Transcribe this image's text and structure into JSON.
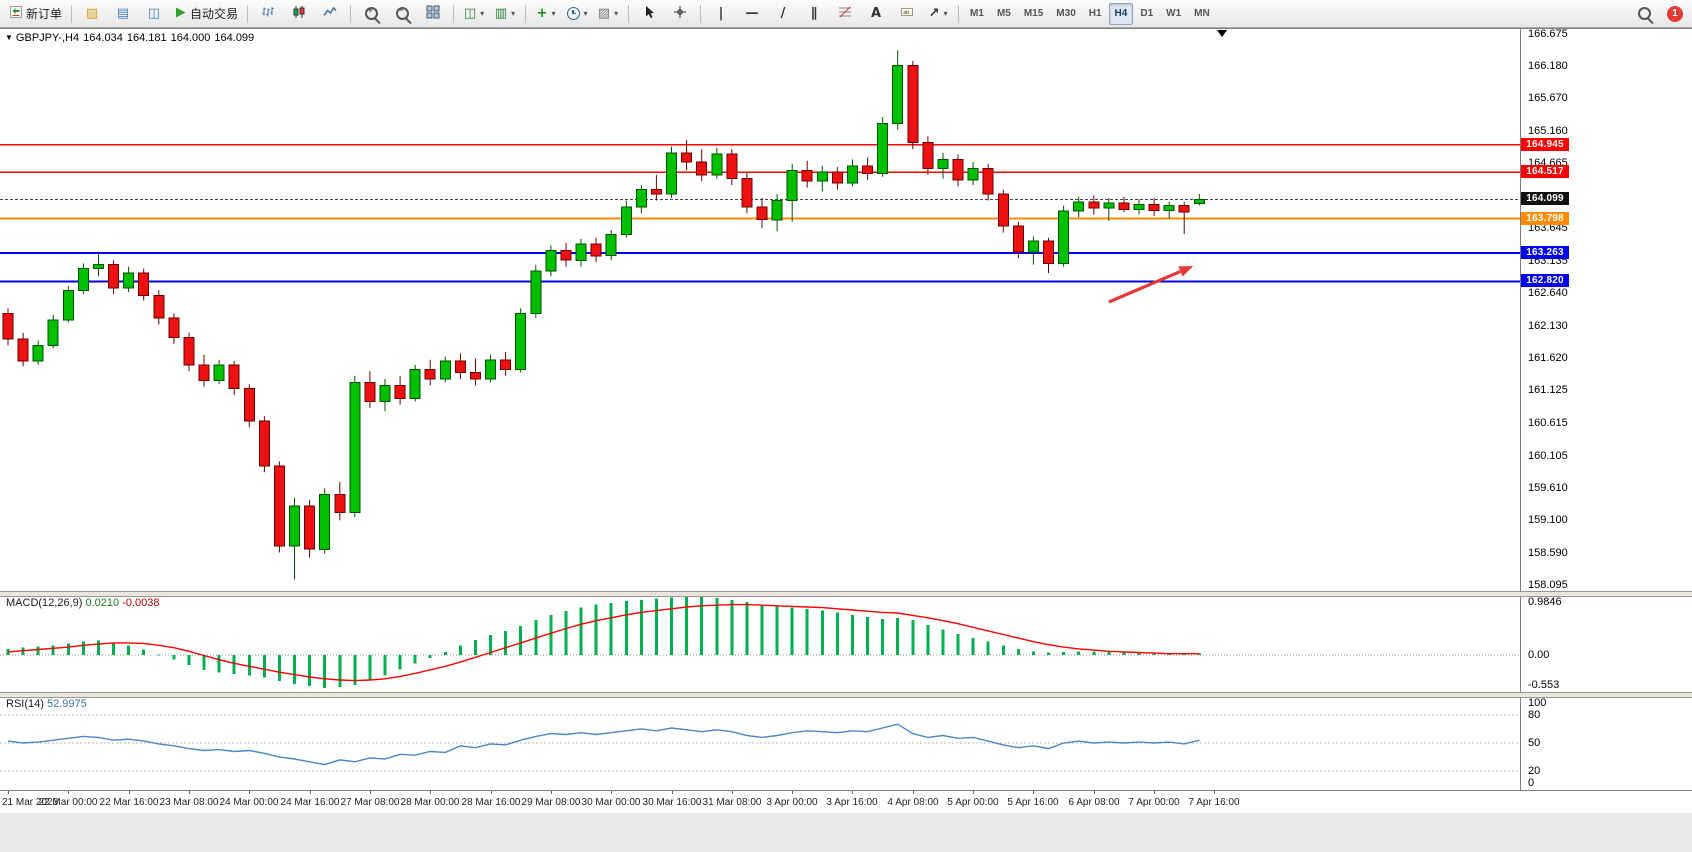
{
  "toolbar": {
    "new_order_label": "新订单",
    "autotrading_label": "自动交易",
    "notification_badge": "1",
    "items": [
      {
        "type": "button",
        "name": "new-order-button",
        "icon": "neworder",
        "label": "新订单"
      },
      {
        "type": "sep"
      },
      {
        "type": "button",
        "name": "new-chart-button",
        "icon": "glyph",
        "glyph": "▧",
        "color": "#d4a017"
      },
      {
        "type": "button",
        "name": "profiles-button",
        "icon": "glyph",
        "glyph": "▤",
        "color": "#4a7ebb"
      },
      {
        "type": "button",
        "name": "terminal-button",
        "icon": "glyph",
        "glyph": "◫",
        "color": "#4a7ebb"
      },
      {
        "type": "button",
        "name": "autotrading-button",
        "icon": "play",
        "label": "自动交易"
      },
      {
        "type": "sep"
      },
      {
        "type": "button",
        "name": "bar-chart-button",
        "icon": "bars"
      },
      {
        "type": "button",
        "name": "candlestick-chart-button",
        "icon": "candles"
      },
      {
        "type": "button",
        "name": "line-chart-button",
        "icon": "linechart"
      },
      {
        "type": "sep"
      },
      {
        "type": "button",
        "name": "zoom-in-button",
        "icon": "magplus"
      },
      {
        "type": "button",
        "name": "zoom-out-button",
        "icon": "magminus"
      },
      {
        "type": "button",
        "name": "tile-windows-button",
        "icon": "tile"
      },
      {
        "type": "sep"
      },
      {
        "type": "button",
        "name": "chart-list-button",
        "icon": "glyph",
        "glyph": "◫",
        "color": "#2e7d32",
        "caret": true
      },
      {
        "type": "button",
        "name": "profiles-menu-button",
        "icon": "glyph",
        "glyph": "▥",
        "color": "#2e7d32",
        "caret": true
      },
      {
        "type": "sep"
      },
      {
        "type": "button",
        "name": "indicators-button",
        "icon": "glyph",
        "glyph": "+",
        "color": "#0a8f08",
        "caret": true
      },
      {
        "type": "button",
        "name": "periods-button",
        "icon": "clock",
        "caret": true
      },
      {
        "type": "button",
        "name": "templates-button",
        "icon": "glyph",
        "glyph": "▨",
        "color": "#777777",
        "caret": true
      },
      {
        "type": "sep"
      },
      {
        "type": "button",
        "name": "cursor-button",
        "icon": "cursor"
      },
      {
        "type": "button",
        "name": "crosshair-button",
        "icon": "crosshair"
      },
      {
        "type": "sep"
      },
      {
        "type": "button",
        "name": "vertical-line-button",
        "icon": "glyph",
        "glyph": "|",
        "color": "#333333"
      },
      {
        "type": "button",
        "name": "horizontal-line-button",
        "icon": "glyph",
        "glyph": "—",
        "color": "#333333"
      },
      {
        "type": "button",
        "name": "trendline-button",
        "icon": "glyph",
        "glyph": "/",
        "color": "#333333"
      },
      {
        "type": "button",
        "name": "channel-button",
        "icon": "glyph",
        "glyph": "∥",
        "color": "#333333"
      },
      {
        "type": "button",
        "name": "fibonacci-button",
        "icon": "fib"
      },
      {
        "type": "button",
        "name": "text-button",
        "icon": "glyph",
        "glyph": "A",
        "color": "#333333"
      },
      {
        "type": "button",
        "name": "text-label-button",
        "icon": "labelicon"
      },
      {
        "type": "button",
        "name": "arrows-button",
        "icon": "glyph",
        "glyph": "↗",
        "color": "#333333",
        "caret": true
      },
      {
        "type": "sep"
      },
      {
        "type": "timeframes"
      }
    ],
    "timeframes": {
      "items": [
        "M1",
        "M5",
        "M15",
        "M30",
        "H1",
        "H4",
        "D1",
        "W1",
        "MN"
      ],
      "active": "H4"
    },
    "right_items": [
      {
        "type": "button",
        "name": "search-button",
        "icon": "mag"
      },
      {
        "type": "badge",
        "name": "notification-badge"
      }
    ]
  },
  "chart": {
    "title": {
      "collapse_icon": "▼",
      "symbol": "GBPJPY-,H4",
      "open": "164.034",
      "high": "164.181",
      "low": "164.000",
      "close": "164.099"
    },
    "price_axis_labels": [
      "166.675",
      "166.180",
      "165.670",
      "165.160",
      "164.665",
      "163.645",
      "163.135",
      "162.640",
      "162.130",
      "161.620",
      "161.125",
      "160.615",
      "160.105",
      "159.610",
      "159.100",
      "158.590",
      "158.095"
    ],
    "macd_pane": {
      "label": "MACD(12,26,9)",
      "value_main": "0.0210",
      "value_signal": "-0.0038",
      "axis_labels": [
        "0.9846",
        "0.00",
        "-0.553"
      ]
    },
    "rsi_pane": {
      "label": "RSI(14)",
      "value": "52.9975",
      "axis_labels": [
        "100",
        "80",
        "50",
        "20",
        "0"
      ]
    },
    "time_axis_labels": [
      "21 Mar 2023",
      "22 Mar 00:00",
      "22 Mar 16:00",
      "23 Mar 08:00",
      "24 Mar 00:00",
      "24 Mar 16:00",
      "27 Mar 08:00",
      "28 Mar 00:00",
      "28 Mar 16:00",
      "29 Mar 08:00",
      "30 Mar 00:00",
      "30 Mar 16:00",
      "31 Mar 08:00",
      "3 Apr 00:00",
      "3 Apr 16:00",
      "4 Apr 08:00",
      "5 Apr 00:00",
      "5 Apr 16:00",
      "6 Apr 08:00",
      "7 Apr 00:00",
      "7 Apr 16:00"
    ]
  },
  "chart_data": {
    "type": "candlestick",
    "symbol": "GBPJPY",
    "timeframe": "H4",
    "ohlc_current": {
      "open": 164.034,
      "high": 164.181,
      "low": 164.0,
      "close": 164.099
    },
    "price_range": [
      158.0,
      166.75
    ],
    "colors": {
      "up": "#00C000",
      "up_border": "#005200",
      "down": "#EE1111",
      "down_border": "#6A0000",
      "macd_hist": "#00B050",
      "macd_signal": "#FF0000",
      "rsi_line": "#4A86C8",
      "arrow": "#E53935"
    },
    "hlines": [
      {
        "price": 164.945,
        "label": "164.945",
        "color": "#FF0000",
        "width": 1.4
      },
      {
        "price": 164.517,
        "label": "164.517",
        "color": "#FF0000",
        "width": 1.4
      },
      {
        "price": 163.798,
        "label": "163.798",
        "color": "#FF8C00",
        "width": 2
      },
      {
        "price": 163.263,
        "label": "163.263",
        "color": "#0000EE",
        "width": 2
      },
      {
        "price": 162.82,
        "label": "162.820",
        "color": "#0000EE",
        "width": 2
      }
    ],
    "bid": {
      "price": 164.099,
      "label": "164.099",
      "color": "#111111"
    },
    "candles": [
      [
        162.32,
        162.4,
        161.82,
        161.92
      ],
      [
        161.92,
        162.02,
        161.5,
        161.58
      ],
      [
        161.58,
        161.9,
        161.52,
        161.82
      ],
      [
        161.82,
        162.3,
        161.78,
        162.22
      ],
      [
        162.22,
        162.75,
        162.18,
        162.68
      ],
      [
        162.68,
        163.1,
        162.62,
        163.02
      ],
      [
        163.02,
        163.26,
        162.9,
        163.08
      ],
      [
        163.08,
        163.15,
        162.62,
        162.72
      ],
      [
        162.72,
        163.05,
        162.65,
        162.95
      ],
      [
        162.95,
        163.02,
        162.52,
        162.6
      ],
      [
        162.6,
        162.68,
        162.15,
        162.25
      ],
      [
        162.25,
        162.32,
        161.85,
        161.95
      ],
      [
        161.95,
        162.02,
        161.42,
        161.52
      ],
      [
        161.52,
        161.68,
        161.18,
        161.28
      ],
      [
        161.28,
        161.6,
        161.22,
        161.52
      ],
      [
        161.52,
        161.58,
        161.05,
        161.15
      ],
      [
        161.15,
        161.22,
        160.55,
        160.65
      ],
      [
        160.65,
        160.72,
        159.85,
        159.95
      ],
      [
        159.95,
        160.02,
        158.6,
        158.7
      ],
      [
        158.7,
        159.45,
        158.18,
        159.32
      ],
      [
        159.32,
        159.42,
        158.52,
        158.65
      ],
      [
        158.65,
        159.6,
        158.58,
        159.5
      ],
      [
        159.5,
        159.7,
        159.1,
        159.22
      ],
      [
        159.22,
        161.35,
        159.15,
        161.25
      ],
      [
        161.25,
        161.42,
        160.85,
        160.95
      ],
      [
        160.95,
        161.3,
        160.8,
        161.2
      ],
      [
        161.2,
        161.35,
        160.9,
        161.0
      ],
      [
        161.0,
        161.52,
        160.95,
        161.45
      ],
      [
        161.45,
        161.6,
        161.2,
        161.3
      ],
      [
        161.3,
        161.65,
        161.25,
        161.58
      ],
      [
        161.58,
        161.7,
        161.3,
        161.4
      ],
      [
        161.4,
        161.62,
        161.2,
        161.3
      ],
      [
        161.3,
        161.68,
        161.25,
        161.6
      ],
      [
        161.6,
        161.72,
        161.35,
        161.45
      ],
      [
        161.45,
        162.4,
        161.4,
        162.32
      ],
      [
        162.32,
        163.08,
        162.25,
        162.98
      ],
      [
        162.98,
        163.38,
        162.9,
        163.3
      ],
      [
        163.3,
        163.42,
        163.05,
        163.15
      ],
      [
        163.15,
        163.48,
        163.05,
        163.4
      ],
      [
        163.4,
        163.5,
        163.12,
        163.22
      ],
      [
        163.22,
        163.62,
        163.15,
        163.55
      ],
      [
        163.55,
        164.08,
        163.5,
        163.98
      ],
      [
        163.98,
        164.32,
        163.88,
        164.25
      ],
      [
        164.25,
        164.48,
        164.08,
        164.18
      ],
      [
        164.18,
        164.92,
        164.12,
        164.82
      ],
      [
        164.82,
        165.02,
        164.55,
        164.68
      ],
      [
        164.68,
        164.88,
        164.38,
        164.48
      ],
      [
        164.48,
        164.9,
        164.42,
        164.8
      ],
      [
        164.8,
        164.88,
        164.32,
        164.42
      ],
      [
        164.42,
        164.52,
        163.88,
        163.98
      ],
      [
        163.98,
        164.12,
        163.65,
        163.78
      ],
      [
        163.78,
        164.18,
        163.6,
        164.08
      ],
      [
        164.08,
        164.65,
        163.75,
        164.55
      ],
      [
        164.55,
        164.7,
        164.28,
        164.38
      ],
      [
        164.38,
        164.62,
        164.22,
        164.52
      ],
      [
        164.52,
        164.6,
        164.25,
        164.35
      ],
      [
        164.35,
        164.72,
        164.3,
        164.62
      ],
      [
        164.62,
        164.75,
        164.4,
        164.5
      ],
      [
        164.5,
        165.38,
        164.45,
        165.28
      ],
      [
        165.28,
        166.42,
        165.18,
        166.18
      ],
      [
        166.18,
        166.25,
        164.88,
        164.98
      ],
      [
        164.98,
        165.08,
        164.48,
        164.58
      ],
      [
        164.58,
        164.82,
        164.42,
        164.72
      ],
      [
        164.72,
        164.8,
        164.3,
        164.4
      ],
      [
        164.4,
        164.68,
        164.32,
        164.58
      ],
      [
        164.58,
        164.65,
        164.08,
        164.18
      ],
      [
        164.18,
        164.25,
        163.58,
        163.68
      ],
      [
        163.68,
        163.75,
        163.18,
        163.28
      ],
      [
        163.28,
        163.52,
        163.08,
        163.45
      ],
      [
        163.45,
        163.5,
        162.95,
        163.1
      ],
      [
        163.1,
        164.0,
        163.05,
        163.92
      ],
      [
        163.92,
        164.14,
        163.82,
        164.06
      ],
      [
        164.06,
        164.16,
        163.86,
        163.96
      ],
      [
        163.96,
        164.12,
        163.76,
        164.04
      ],
      [
        164.04,
        164.14,
        163.9,
        163.94
      ],
      [
        163.94,
        164.1,
        163.86,
        164.02
      ],
      [
        164.02,
        164.12,
        163.84,
        163.92
      ],
      [
        163.92,
        164.06,
        163.8,
        164.0
      ],
      [
        164.0,
        164.06,
        163.56,
        163.9
      ],
      [
        164.034,
        164.181,
        164.0,
        164.099
      ]
    ],
    "macd": {
      "range": [
        -0.62,
        1.0
      ],
      "histogram": [
        0.1,
        0.12,
        0.14,
        0.16,
        0.19,
        0.22,
        0.24,
        0.21,
        0.16,
        0.09,
        0.01,
        -0.08,
        -0.17,
        -0.25,
        -0.29,
        -0.32,
        -0.34,
        -0.38,
        -0.44,
        -0.49,
        -0.52,
        -0.55,
        -0.54,
        -0.5,
        -0.43,
        -0.34,
        -0.24,
        -0.14,
        -0.05,
        0.05,
        0.16,
        0.25,
        0.33,
        0.4,
        0.48,
        0.58,
        0.67,
        0.73,
        0.79,
        0.84,
        0.87,
        0.9,
        0.92,
        0.94,
        0.96,
        0.98,
        0.97,
        0.95,
        0.92,
        0.88,
        0.84,
        0.81,
        0.79,
        0.77,
        0.74,
        0.71,
        0.67,
        0.63,
        0.6,
        0.62,
        0.58,
        0.5,
        0.42,
        0.35,
        0.28,
        0.22,
        0.16,
        0.1,
        0.06,
        0.04,
        0.05,
        0.06,
        0.06,
        0.05,
        0.04,
        0.04,
        0.03,
        0.03,
        0.02,
        0.02
      ],
      "signal": [
        0.05,
        0.07,
        0.09,
        0.11,
        0.13,
        0.16,
        0.18,
        0.2,
        0.2,
        0.19,
        0.16,
        0.12,
        0.06,
        -0.01,
        -0.08,
        -0.14,
        -0.19,
        -0.24,
        -0.29,
        -0.33,
        -0.37,
        -0.4,
        -0.42,
        -0.43,
        -0.42,
        -0.4,
        -0.36,
        -0.31,
        -0.25,
        -0.19,
        -0.12,
        -0.04,
        0.04,
        0.12,
        0.2,
        0.28,
        0.36,
        0.44,
        0.51,
        0.57,
        0.62,
        0.67,
        0.71,
        0.74,
        0.77,
        0.8,
        0.82,
        0.83,
        0.84,
        0.84,
        0.83,
        0.82,
        0.81,
        0.8,
        0.79,
        0.77,
        0.75,
        0.73,
        0.71,
        0.7,
        0.66,
        0.62,
        0.57,
        0.52,
        0.46,
        0.4,
        0.34,
        0.28,
        0.22,
        0.17,
        0.13,
        0.1,
        0.08,
        0.06,
        0.05,
        0.04,
        0.03,
        0.02,
        0.02,
        0.02
      ]
    },
    "rsi": {
      "range": [
        0,
        100
      ],
      "levels": [
        80,
        50,
        20
      ],
      "values": [
        52,
        50,
        51,
        53,
        55,
        57,
        56,
        53,
        54,
        52,
        49,
        47,
        44,
        42,
        43,
        41,
        42,
        39,
        35,
        33,
        30,
        27,
        32,
        30,
        34,
        33,
        38,
        37,
        41,
        40,
        47,
        45,
        49,
        48,
        53,
        57,
        60,
        59,
        61,
        59,
        61,
        63,
        65,
        63,
        66,
        64,
        62,
        64,
        62,
        58,
        56,
        58,
        61,
        63,
        62,
        61,
        63,
        62,
        66,
        70,
        60,
        56,
        58,
        55,
        56,
        52,
        48,
        45,
        47,
        44,
        50,
        52,
        50,
        51,
        50,
        51,
        50,
        51,
        49,
        53
      ]
    },
    "annotation_arrow": {
      "from": {
        "index": 73.0,
        "price": 162.5
      },
      "to": {
        "index": 78.6,
        "price": 163.06
      },
      "color": "#E53935"
    }
  }
}
